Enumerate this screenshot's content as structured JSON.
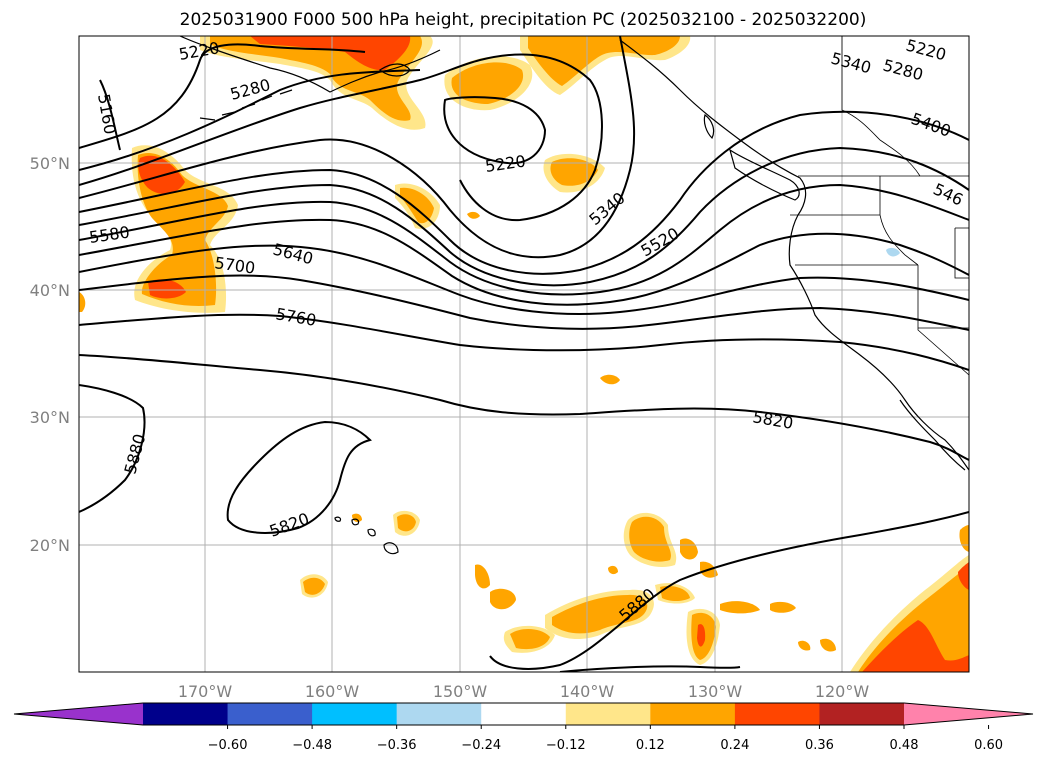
{
  "title": "2025031900 F000 500 hPa height, precipitation PC (2025032100 - 2025032200)",
  "map": {
    "lon_range": [
      -180,
      -110
    ],
    "lat_range": [
      10,
      60
    ],
    "lon_ticks": [
      -170,
      -160,
      -150,
      -140,
      -130,
      -120
    ],
    "lon_tick_labels": [
      "170°W",
      "160°W",
      "150°W",
      "140°W",
      "130°W",
      "120°W"
    ],
    "lat_ticks": [
      20,
      30,
      40,
      50
    ],
    "lat_tick_labels": [
      "20°N",
      "30°N",
      "40°N",
      "50°N"
    ],
    "grid": true,
    "axis_color": "#808080"
  },
  "contour_labels": [
    {
      "text": "5220"
    },
    {
      "text": "5280"
    },
    {
      "text": "5160"
    },
    {
      "text": "5220"
    },
    {
      "text": "5580"
    },
    {
      "text": "5640"
    },
    {
      "text": "5700"
    },
    {
      "text": "5760"
    },
    {
      "text": "5340"
    },
    {
      "text": "5520"
    },
    {
      "text": "5220"
    },
    {
      "text": "5340"
    },
    {
      "text": "5280"
    },
    {
      "text": "5400"
    },
    {
      "text": "546"
    },
    {
      "text": "5820"
    },
    {
      "text": "5820"
    },
    {
      "text": "5880"
    },
    {
      "text": "5880"
    }
  ],
  "colorbar": {
    "ticks": [
      "−0.60",
      "−0.48",
      "−0.36",
      "−0.24",
      "−0.12",
      "0.12",
      "0.24",
      "0.36",
      "0.48",
      "0.60"
    ],
    "colors": [
      "#9932cc",
      "#00008b",
      "#3a5fcd",
      "#00bfff",
      "#add8f0",
      "#ffffff",
      "#ffe68a",
      "#ffa500",
      "#ff4500",
      "#b22222",
      "#ff82ab"
    ],
    "extend": "both"
  },
  "colors": {
    "light_yellow": "#ffe68a",
    "orange": "#ffa500",
    "red_orange": "#ff4500",
    "light_blue": "#add8f0"
  }
}
